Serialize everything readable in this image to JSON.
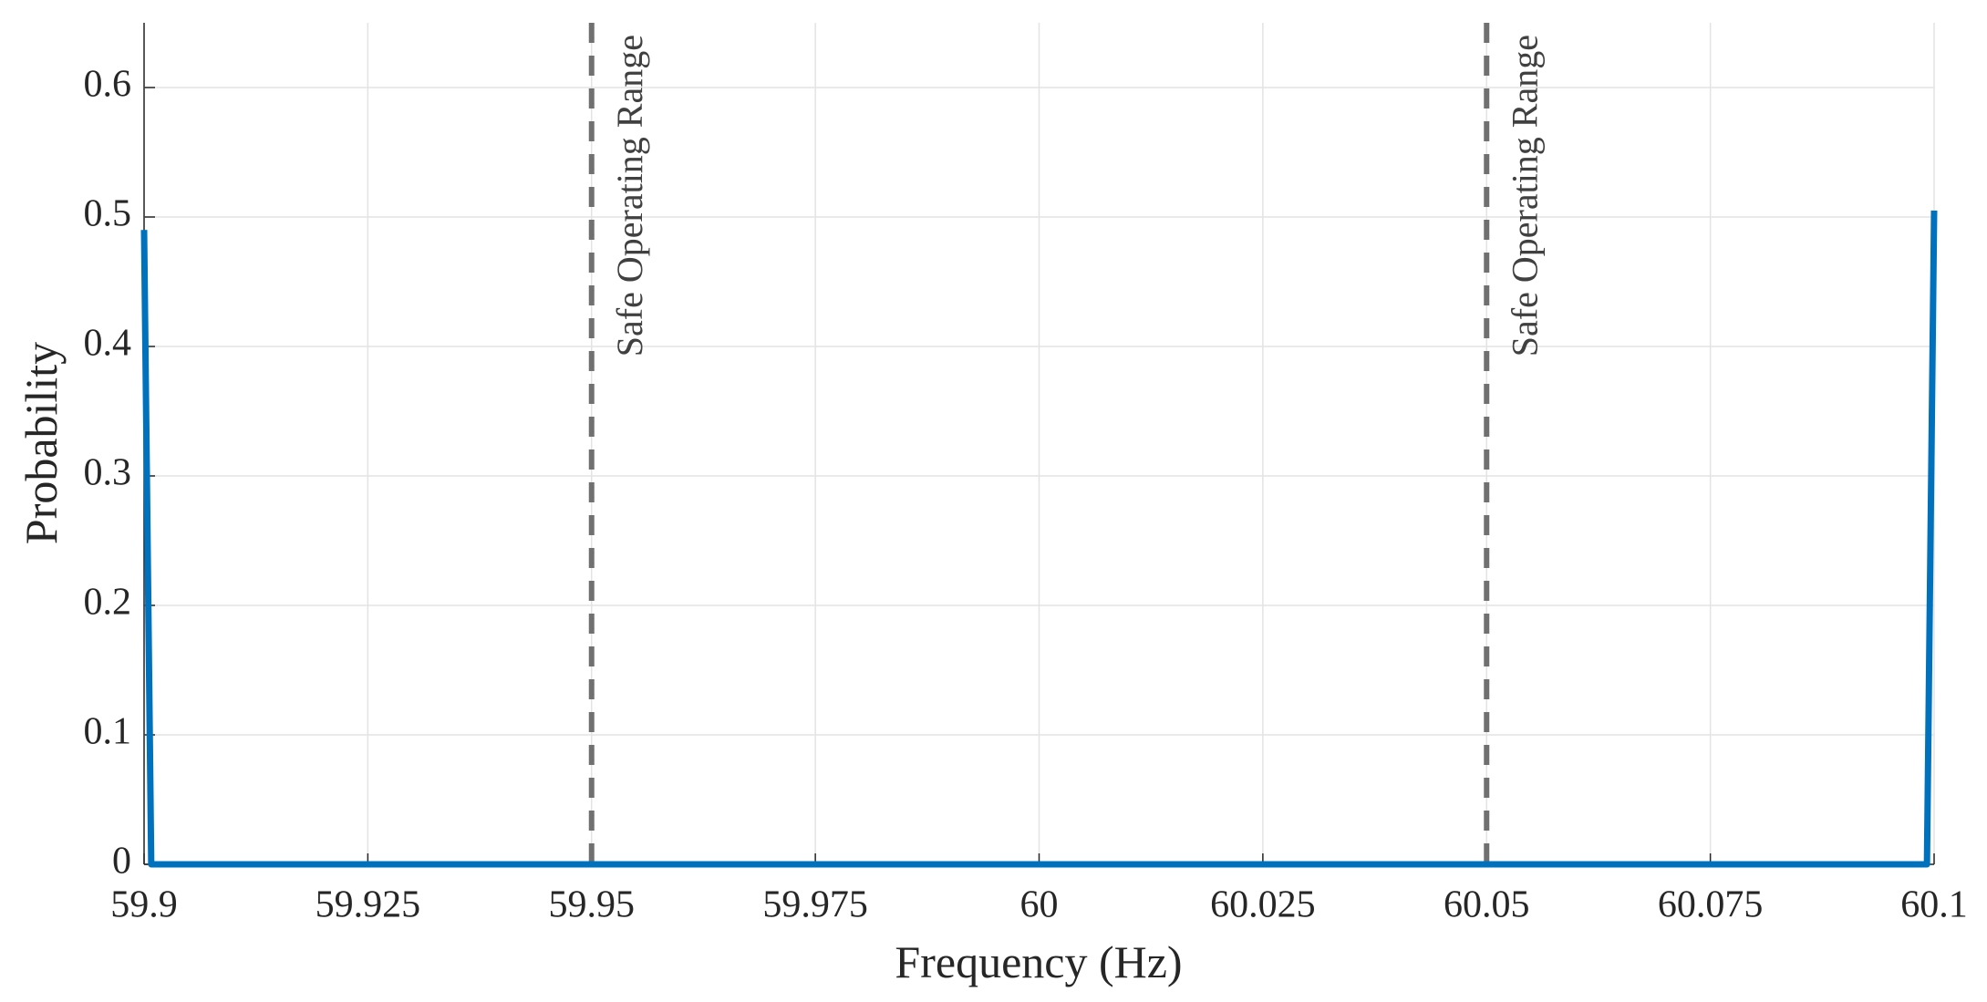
{
  "chart_data": {
    "type": "line",
    "x_label": "Frequency (Hz)",
    "y_label": "Probability",
    "series": [
      {
        "color": "#0072bd",
        "x": [
          59.9,
          59.9008,
          60.0992,
          60.1
        ],
        "values": [
          0.49,
          0,
          0,
          0.505
        ]
      }
    ],
    "reference_lines": [
      {
        "x": 59.95,
        "label": "Safe Operating Range",
        "color": "#707070"
      },
      {
        "x": 60.05,
        "label": "Safe Operating Range",
        "color": "#707070"
      }
    ],
    "xlim": [
      59.9,
      60.1
    ],
    "xticks": [
      59.9,
      59.925,
      59.95,
      59.975,
      60,
      60.025,
      60.05,
      60.075,
      60.1
    ],
    "ylim": [
      0,
      0.65
    ],
    "yticks": [
      0,
      0.1,
      0.2,
      0.3,
      0.4,
      0.5,
      0.6
    ],
    "grid": true
  }
}
